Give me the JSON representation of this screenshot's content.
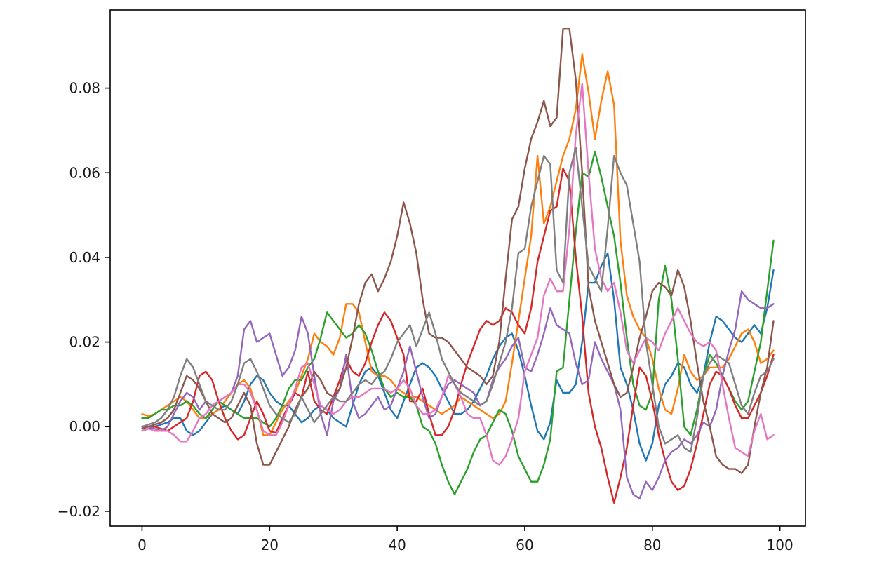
{
  "chart_data": {
    "type": "line",
    "title": "",
    "xlabel": "",
    "ylabel": "",
    "xlim": [
      -5,
      104
    ],
    "ylim": [
      -0.0235,
      0.0985
    ],
    "xticks": [
      0,
      20,
      40,
      60,
      80,
      100
    ],
    "xtick_labels": [
      "0",
      "20",
      "40",
      "60",
      "80",
      "100"
    ],
    "yticks": [
      -0.02,
      0.0,
      0.02,
      0.04,
      0.06,
      0.08
    ],
    "ytick_labels": [
      "−0.02",
      "0.00",
      "0.02",
      "0.04",
      "0.06",
      "0.08"
    ],
    "grid": false,
    "legend": "none",
    "x_start": 0,
    "x_step": 1,
    "series": [
      {
        "color": "#1f77b4",
        "values": [
          -0.001,
          -0.0005,
          0.0,
          0.0005,
          0.001,
          0.002,
          0.002,
          -0.001,
          -0.002,
          -0.001,
          0.001,
          0.003,
          0.004,
          0.005,
          0.004,
          0.003,
          0.006,
          0.01,
          0.012,
          0.011,
          0.008,
          0.006,
          0.005,
          0.005,
          0.003,
          0.001,
          0.002,
          0.004,
          0.005,
          0.004,
          0.002,
          0.001,
          0.0,
          0.005,
          0.01,
          0.013,
          0.014,
          0.012,
          0.008,
          0.004,
          0.002,
          0.006,
          0.01,
          0.014,
          0.015,
          0.014,
          0.012,
          0.009,
          0.006,
          0.003,
          0.003,
          0.004,
          0.006,
          0.009,
          0.012,
          0.016,
          0.019,
          0.021,
          0.022,
          0.018,
          0.012,
          0.005,
          -0.001,
          -0.003,
          0.001,
          0.011,
          0.008,
          0.008,
          0.01,
          0.02,
          0.034,
          0.034,
          0.038,
          0.041,
          0.03,
          0.014,
          0.01,
          0.004,
          -0.004,
          -0.008,
          -0.004,
          0.005,
          0.01,
          0.012,
          0.015,
          0.014,
          0.01,
          0.008,
          0.012,
          0.02,
          0.026,
          0.025,
          0.023,
          0.021,
          0.02,
          0.022,
          0.024,
          0.022,
          0.028,
          0.037
        ]
      },
      {
        "color": "#ff7f0e",
        "values": [
          0.003,
          0.0025,
          0.003,
          0.004,
          0.005,
          0.006,
          0.007,
          0.006,
          0.004,
          0.002,
          0.002,
          0.003,
          0.004,
          0.006,
          0.008,
          0.01,
          0.011,
          0.009,
          0.004,
          -0.002,
          -0.002,
          0.001,
          0.004,
          0.006,
          0.008,
          0.012,
          0.016,
          0.022,
          0.02,
          0.019,
          0.017,
          0.021,
          0.029,
          0.029,
          0.027,
          0.02,
          0.013,
          0.012,
          0.012,
          0.011,
          0.009,
          0.008,
          0.007,
          0.007,
          0.006,
          0.005,
          0.004,
          0.003,
          0.004,
          0.005,
          0.007,
          0.006,
          0.005,
          0.004,
          0.003,
          0.002,
          0.003,
          0.006,
          0.015,
          0.025,
          0.035,
          0.045,
          0.064,
          0.048,
          0.052,
          0.058,
          0.064,
          0.068,
          0.075,
          0.088,
          0.079,
          0.068,
          0.077,
          0.084,
          0.076,
          0.044,
          0.031,
          0.026,
          0.023,
          0.021,
          0.016,
          0.009,
          0.004,
          0.003,
          0.009,
          0.017,
          0.013,
          0.011,
          0.012,
          0.014,
          0.014,
          0.014,
          0.016,
          0.019,
          0.022,
          0.023,
          0.02,
          0.015,
          0.016,
          0.018
        ]
      },
      {
        "color": "#2ca02c",
        "values": [
          0.002,
          0.002,
          0.003,
          0.004,
          0.004,
          0.005,
          0.005,
          0.006,
          0.005,
          0.003,
          0.002,
          0.004,
          0.006,
          0.005,
          0.004,
          0.003,
          0.002,
          0.002,
          0.002,
          0.001,
          0.0,
          0.002,
          0.005,
          0.009,
          0.011,
          0.011,
          0.014,
          0.016,
          0.021,
          0.027,
          0.025,
          0.023,
          0.021,
          0.022,
          0.024,
          0.022,
          0.018,
          0.013,
          0.009,
          0.007,
          0.008,
          0.007,
          0.007,
          0.005,
          0.0,
          -0.001,
          -0.004,
          -0.009,
          -0.013,
          -0.016,
          -0.013,
          -0.01,
          -0.006,
          -0.003,
          -0.002,
          0.001,
          0.004,
          0.003,
          -0.001,
          -0.007,
          -0.01,
          -0.013,
          -0.013,
          -0.009,
          -0.003,
          0.013,
          0.014,
          0.03,
          0.046,
          0.06,
          0.059,
          0.065,
          0.059,
          0.052,
          0.045,
          0.034,
          0.021,
          0.01,
          0.005,
          0.004,
          0.008,
          0.03,
          0.038,
          0.03,
          0.016,
          0.0,
          -0.002,
          0.004,
          0.012,
          0.017,
          0.015,
          0.012,
          0.009,
          0.006,
          0.004,
          0.006,
          0.013,
          0.02,
          0.032,
          0.044
        ]
      },
      {
        "color": "#d62728",
        "values": [
          0.0,
          0.0,
          0.0,
          -0.0005,
          -0.001,
          0.0,
          0.001,
          0.002,
          0.006,
          0.012,
          0.013,
          0.011,
          0.006,
          0.002,
          -0.001,
          -0.003,
          -0.002,
          0.002,
          0.006,
          0.003,
          -0.001,
          -0.0015,
          0.002,
          0.005,
          0.008,
          0.007,
          0.013,
          0.006,
          0.004,
          0.003,
          0.007,
          0.011,
          0.016,
          0.013,
          0.012,
          0.015,
          0.02,
          0.024,
          0.027,
          0.025,
          0.021,
          0.017,
          0.006,
          0.006,
          0.009,
          0.003,
          -0.002,
          -0.002,
          0.0,
          0.004,
          0.01,
          0.015,
          0.019,
          0.023,
          0.025,
          0.024,
          0.025,
          0.028,
          0.027,
          0.024,
          0.022,
          0.028,
          0.039,
          0.045,
          0.051,
          0.052,
          0.061,
          0.058,
          0.04,
          0.026,
          0.008,
          0.0,
          -0.005,
          -0.012,
          -0.018,
          -0.012,
          -0.005,
          0.005,
          0.014,
          0.012,
          0.006,
          -0.002,
          -0.008,
          -0.013,
          -0.015,
          -0.014,
          -0.01,
          -0.004,
          0.003,
          0.01,
          0.013,
          0.012,
          0.009,
          0.005,
          0.002,
          0.002,
          0.005,
          0.008,
          0.012,
          0.017
        ]
      },
      {
        "color": "#9467bd",
        "values": [
          0.0,
          0.0,
          -0.0005,
          -0.001,
          0.0,
          0.003,
          0.006,
          0.008,
          0.007,
          0.004,
          0.006,
          0.005,
          0.006,
          0.007,
          0.008,
          0.012,
          0.023,
          0.025,
          0.02,
          0.021,
          0.022,
          0.017,
          0.012,
          0.014,
          0.018,
          0.026,
          0.022,
          0.012,
          0.003,
          -0.002,
          0.006,
          0.009,
          0.017,
          0.006,
          0.002,
          0.003,
          0.005,
          0.007,
          0.004,
          0.005,
          0.009,
          0.013,
          0.019,
          0.013,
          0.007,
          0.002,
          0.003,
          0.007,
          0.01,
          0.011,
          0.01,
          0.009,
          0.008,
          0.005,
          0.006,
          0.011,
          0.014,
          0.016,
          0.019,
          0.021,
          0.014,
          0.013,
          0.017,
          0.022,
          0.028,
          0.024,
          0.023,
          0.022,
          0.015,
          0.01,
          0.011,
          0.02,
          0.016,
          0.013,
          0.01,
          0.004,
          -0.012,
          -0.016,
          -0.017,
          -0.013,
          -0.015,
          -0.012,
          -0.008,
          -0.006,
          -0.005,
          -0.003,
          -0.004,
          -0.002,
          0.001,
          0.0,
          0.004,
          0.012,
          0.018,
          0.023,
          0.032,
          0.03,
          0.029,
          0.028,
          0.028,
          0.029
        ]
      },
      {
        "color": "#8c564b",
        "values": [
          -0.0005,
          0.0,
          0.0005,
          0.001,
          0.002,
          0.004,
          0.008,
          0.012,
          0.011,
          0.009,
          0.006,
          0.003,
          0.002,
          0.001,
          0.002,
          0.005,
          0.008,
          0.005,
          -0.004,
          -0.009,
          -0.009,
          -0.006,
          -0.003,
          0.0,
          0.004,
          0.007,
          0.009,
          0.013,
          0.011,
          0.008,
          0.007,
          0.009,
          0.014,
          0.021,
          0.029,
          0.034,
          0.036,
          0.032,
          0.035,
          0.039,
          0.045,
          0.053,
          0.048,
          0.041,
          0.03,
          0.022,
          0.021,
          0.021,
          0.02,
          0.018,
          0.016,
          0.014,
          0.013,
          0.012,
          0.01,
          0.012,
          0.02,
          0.035,
          0.049,
          0.052,
          0.061,
          0.068,
          0.072,
          0.077,
          0.071,
          0.073,
          0.094,
          0.094,
          0.082,
          0.06,
          0.033,
          0.025,
          0.02,
          0.015,
          0.01,
          0.007,
          0.008,
          0.014,
          0.021,
          0.026,
          0.032,
          0.034,
          0.033,
          0.031,
          0.037,
          0.033,
          0.025,
          0.015,
          0.006,
          0.0,
          -0.007,
          -0.009,
          -0.01,
          -0.01,
          -0.011,
          -0.009,
          0.0,
          0.008,
          0.014,
          0.025
        ]
      },
      {
        "color": "#e377c2",
        "values": [
          -0.001,
          -0.0005,
          -0.001,
          -0.001,
          -0.001,
          -0.002,
          -0.0035,
          -0.0035,
          -0.001,
          0.002,
          0.003,
          0.005,
          0.006,
          0.007,
          0.008,
          0.01,
          0.01,
          0.008,
          0.004,
          -0.001,
          -0.002,
          -0.002,
          0.001,
          0.005,
          0.009,
          0.014,
          0.015,
          0.01,
          0.005,
          0.004,
          0.003,
          0.004,
          0.006,
          0.007,
          0.007,
          0.008,
          0.009,
          0.009,
          0.009,
          0.008,
          0.009,
          0.011,
          0.009,
          0.005,
          0.003,
          0.003,
          0.004,
          0.007,
          0.012,
          0.01,
          0.007,
          0.003,
          0.002,
          0.002,
          -0.002,
          -0.008,
          -0.009,
          -0.007,
          -0.003,
          0.002,
          0.013,
          0.017,
          0.021,
          0.031,
          0.035,
          0.032,
          0.032,
          0.047,
          0.069,
          0.081,
          0.06,
          0.042,
          0.035,
          0.032,
          0.034,
          0.027,
          0.018,
          0.015,
          0.018,
          0.021,
          0.02,
          0.018,
          0.022,
          0.025,
          0.028,
          0.025,
          0.022,
          0.02,
          0.019,
          0.02,
          0.018,
          0.01,
          0.002,
          -0.005,
          -0.006,
          -0.007,
          -0.001,
          0.003,
          -0.003,
          -0.002
        ]
      },
      {
        "color": "#7f7f7f",
        "values": [
          0.0,
          0.0005,
          0.001,
          0.002,
          0.004,
          0.007,
          0.012,
          0.016,
          0.014,
          0.01,
          0.006,
          0.005,
          0.004,
          0.004,
          0.006,
          0.01,
          0.015,
          0.016,
          0.013,
          0.009,
          0.005,
          0.003,
          0.002,
          0.001,
          0.003,
          0.007,
          0.004,
          0.001,
          0.003,
          0.005,
          0.007,
          0.006,
          0.006,
          0.008,
          0.01,
          0.011,
          0.01,
          0.012,
          0.013,
          0.016,
          0.02,
          0.022,
          0.024,
          0.019,
          0.023,
          0.027,
          0.022,
          0.016,
          0.013,
          0.01,
          0.008,
          0.007,
          0.006,
          0.005,
          0.006,
          0.01,
          0.015,
          0.02,
          0.028,
          0.041,
          0.042,
          0.052,
          0.058,
          0.064,
          0.062,
          0.037,
          0.034,
          0.06,
          0.066,
          0.052,
          0.038,
          0.035,
          0.032,
          0.047,
          0.064,
          0.06,
          0.057,
          0.048,
          0.039,
          0.02,
          0.01,
          0.0,
          -0.004,
          -0.003,
          -0.002,
          -0.005,
          -0.006,
          0.002,
          0.012,
          0.015,
          0.017,
          0.016,
          0.015,
          0.01,
          0.005,
          0.003,
          0.008,
          0.012,
          0.013,
          0.016
        ]
      }
    ]
  }
}
